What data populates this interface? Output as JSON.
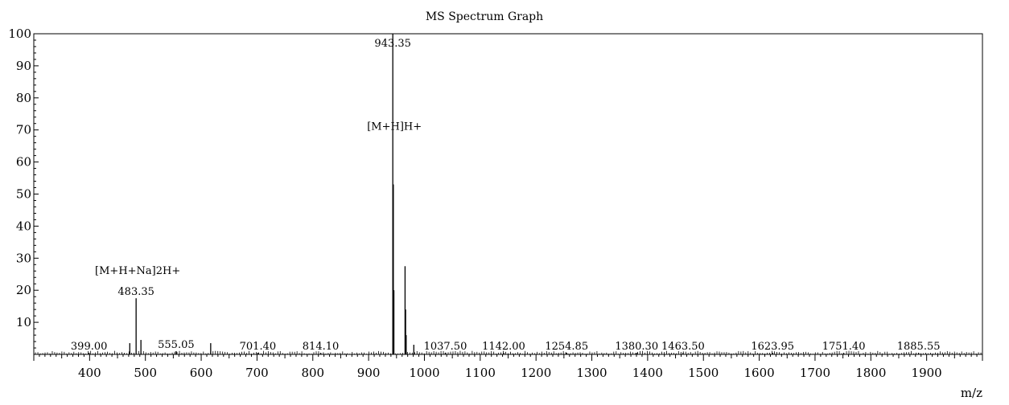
{
  "chart_data": {
    "type": "bar",
    "title": "MS Spectrum Graph",
    "xlabel": "m/z",
    "ylabel": "",
    "xlim": [
      300,
      2000
    ],
    "ylim": [
      0,
      100
    ],
    "x_ticks": [
      400,
      500,
      600,
      700,
      800,
      900,
      1000,
      1100,
      1200,
      1300,
      1400,
      1500,
      1600,
      1700,
      1800,
      1900
    ],
    "y_ticks": [
      10,
      20,
      30,
      40,
      50,
      60,
      70,
      80,
      90,
      100
    ],
    "grid": false,
    "series": [
      {
        "peaks": [
          {
            "x": 399.0,
            "y": 0.5
          },
          {
            "x": 472.0,
            "y": 3.5
          },
          {
            "x": 483.35,
            "y": 17.5
          },
          {
            "x": 492.0,
            "y": 4.5
          },
          {
            "x": 555.05,
            "y": 1.0
          },
          {
            "x": 617.0,
            "y": 3.5
          },
          {
            "x": 701.4,
            "y": 0.5
          },
          {
            "x": 814.1,
            "y": 0.5
          },
          {
            "x": 943.35,
            "y": 100
          },
          {
            "x": 944.3,
            "y": 53
          },
          {
            "x": 945.3,
            "y": 20
          },
          {
            "x": 965.3,
            "y": 27.5
          },
          {
            "x": 966.3,
            "y": 14
          },
          {
            "x": 967.3,
            "y": 6
          },
          {
            "x": 981.0,
            "y": 3
          },
          {
            "x": 1037.5,
            "y": 0.5
          },
          {
            "x": 1142.0,
            "y": 0.5
          },
          {
            "x": 1254.85,
            "y": 0.5
          },
          {
            "x": 1380.3,
            "y": 0.5
          },
          {
            "x": 1463.5,
            "y": 0.5
          },
          {
            "x": 1623.95,
            "y": 0.5
          },
          {
            "x": 1751.4,
            "y": 0.5
          },
          {
            "x": 1885.55,
            "y": 0.5
          }
        ]
      }
    ],
    "peak_labels": [
      {
        "x": 399.0,
        "text": "399.00"
      },
      {
        "x": 483.35,
        "text": "483.35"
      },
      {
        "x": 555.05,
        "text": "555.05"
      },
      {
        "x": 701.4,
        "text": "701.40"
      },
      {
        "x": 814.1,
        "text": "814.10"
      },
      {
        "x": 943.35,
        "text": "943.35"
      },
      {
        "x": 1037.5,
        "text": "1037.50"
      },
      {
        "x": 1142.0,
        "text": "1142.00"
      },
      {
        "x": 1254.85,
        "text": "1254.85"
      },
      {
        "x": 1380.3,
        "text": "1380.30"
      },
      {
        "x": 1463.5,
        "text": "1463.50"
      },
      {
        "x": 1623.95,
        "text": "1623.95"
      },
      {
        "x": 1751.4,
        "text": "1751.40"
      },
      {
        "x": 1885.55,
        "text": "1885.55"
      }
    ],
    "annotations": [
      {
        "x": 943.35,
        "text": "[M+H]H+"
      },
      {
        "x": 483.35,
        "text": "[M+H+Na]2H+"
      }
    ]
  }
}
